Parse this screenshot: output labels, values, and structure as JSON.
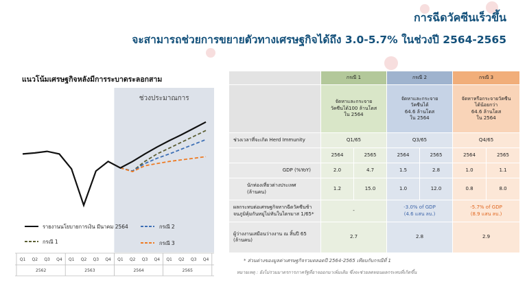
{
  "header": {
    "title": "การฉีดวัคซีนเร็วขึ้น",
    "subtitle": "จะสามารถช่วยการขยายตัวทางเศรษฐกิจได้ถึง 3.0-5.7% ในช่วงปี 2564-2565"
  },
  "chart_data": {
    "type": "line",
    "title": "แนวโน้มเศรษฐกิจหลังมีการระบาดระลอกสาม",
    "forecast_label": "ช่วงประมาณการ",
    "categories": [
      "Q1",
      "Q2",
      "Q3",
      "Q4",
      "Q1",
      "Q2",
      "Q3",
      "Q4",
      "Q1",
      "Q2",
      "Q3",
      "Q4",
      "Q1",
      "Q2",
      "Q3",
      "Q4"
    ],
    "years": [
      "2562",
      "2563",
      "2564",
      "2565"
    ],
    "series": [
      {
        "name": "รายงานนโยบายการเงิน มีนาคม 2564",
        "color": "#111111",
        "dash": "solid",
        "values": [
          0.0,
          0.2,
          0.5,
          0.0,
          -2.8,
          -9.6,
          -3.2,
          -1.4,
          -2.6,
          -1.4,
          0.0,
          1.3,
          2.5,
          3.6,
          4.8,
          6.0
        ]
      },
      {
        "name": "กรณี 1",
        "color": "#5b5e33",
        "dash": "dashed",
        "values": [
          null,
          null,
          null,
          null,
          null,
          null,
          null,
          null,
          -2.6,
          -3.2,
          -1.4,
          0.0,
          1.1,
          2.2,
          3.3,
          4.4
        ]
      },
      {
        "name": "กรณี 2",
        "color": "#3d6fb5",
        "dash": "dashed",
        "values": [
          null,
          null,
          null,
          null,
          null,
          null,
          null,
          null,
          -2.6,
          -3.2,
          -1.8,
          -0.8,
          0.0,
          0.9,
          1.8,
          2.7
        ]
      },
      {
        "name": "กรณี 3",
        "color": "#ee7a22",
        "dash": "dashed",
        "values": [
          null,
          null,
          null,
          null,
          null,
          null,
          null,
          null,
          -2.6,
          -3.3,
          -2.2,
          -1.8,
          -1.4,
          -1.1,
          -0.8,
          -0.5
        ]
      }
    ],
    "ylim": [
      -11,
      7
    ],
    "forecast_from_index": 8
  },
  "table": {
    "cases": [
      "กรณี 1",
      "กรณี 2",
      "กรณี 3"
    ],
    "descriptions": [
      [
        "จัดหาและกระจาย",
        "วัคซีนได้100 ล้านโดส",
        "ใน 2564"
      ],
      [
        "จัดหาและกระจาย",
        "วัคซีนได้",
        "64.6 ล้านโดส",
        "ใน 2564"
      ],
      [
        "จัดหาหรือกระจายวัคซีน",
        "ได้น้อยกว่า",
        "64.6 ล้านโดส",
        "ใน 2564"
      ]
    ],
    "herd_label": "ช่วงเวลาที่จะเกิด Herd Immunity",
    "herd_values": [
      "Q1/65",
      "Q3/65",
      "Q4/65"
    ],
    "years": [
      "2564",
      "2565",
      "2564",
      "2565",
      "2564",
      "2565"
    ],
    "gdp_label": "GDP (%YoY)",
    "gdp_values": [
      "2.0",
      "4.7",
      "1.5",
      "2.8",
      "1.0",
      "1.1"
    ],
    "tourist_label": [
      "นักท่องเที่ยวต่างประเทศ",
      "(ล้านคน)"
    ],
    "tourist_values": [
      "1.2",
      "15.0",
      "1.0",
      "12.0",
      "0.8",
      "8.0"
    ],
    "impact_label": [
      "ผลกระทบต่อเศรษฐกิจหากฉีดวัคซีนช้า",
      "จนภูมิคุ้มกันหมู่ไม่ทันในไตรมาส 1/65*"
    ],
    "impact_values": [
      [
        "-"
      ],
      [
        "-3.0% of GDP",
        "(4.6 แสน ลบ.)"
      ],
      [
        "-5.7% of GDP",
        "(8.9 แสน ลบ.)"
      ]
    ],
    "unemp_label": [
      "ผู้ว่างงานเสมือนว่างงาน ณ สิ้นปี 65",
      "(ล้านคน)"
    ],
    "unemp_values": [
      "2.7",
      "2.8",
      "2.9"
    ]
  },
  "notes": {
    "note1": "* ส่วนต่างของมูลค่าเศรษฐกิจรวมตลอดปี 2564-2565 เทียบกับกรณีที่ 1",
    "note2": "หมายเหตุ : ยังไม่รวมมาตรการภาครัฐที่อาจออกมาเพิ่มเติม ซึ่งจะช่วยลดทอนผลกระทบที่เกิดขึ้น"
  },
  "colors": {
    "title": "#13507a",
    "case1": "#b3c89a",
    "case2": "#9fb3ce",
    "case3": "#f1ae7a",
    "forecast_shade": "#dde2ea"
  }
}
